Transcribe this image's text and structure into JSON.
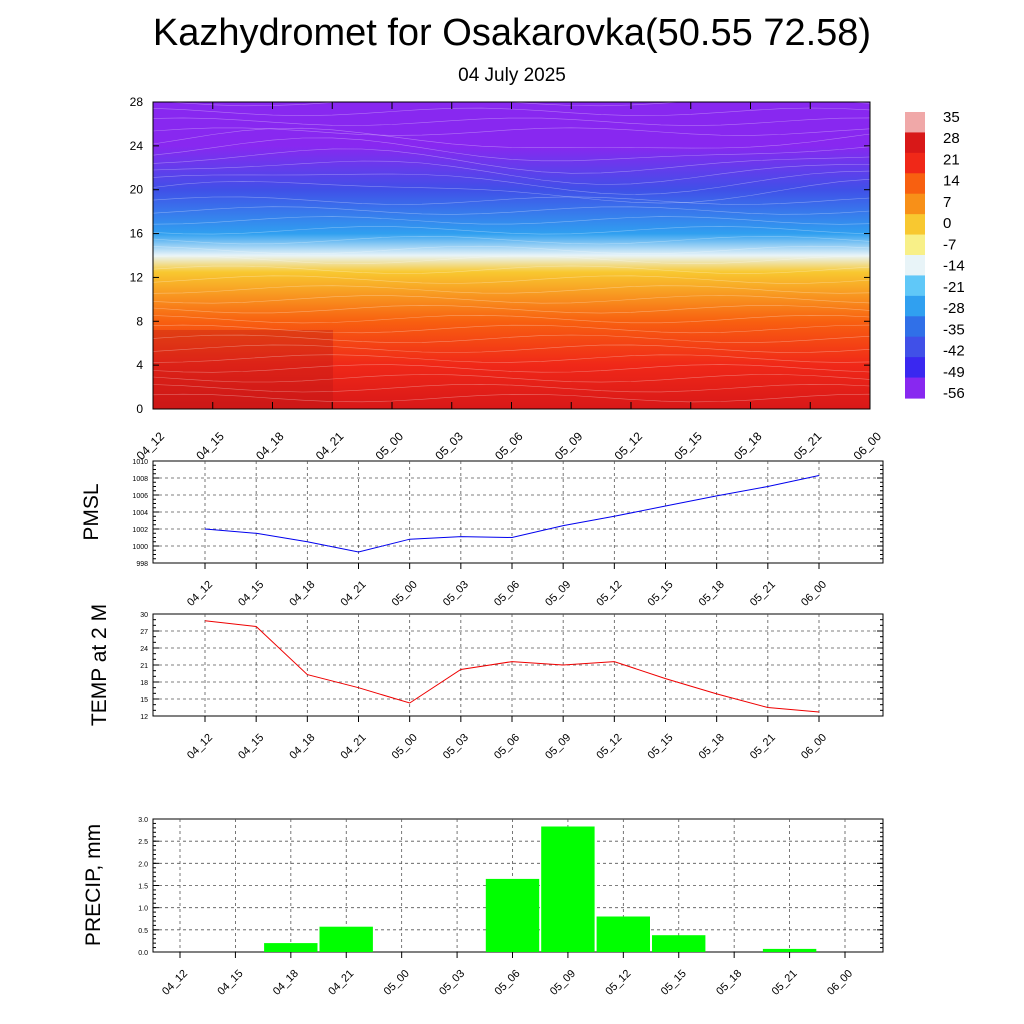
{
  "title": "Kazhydromet for Osakarovka(50.55 72.58)",
  "subtitle": "04 July 2025",
  "time_labels": [
    "04_12",
    "04_15",
    "04_18",
    "04_21",
    "05_00",
    "05_03",
    "05_06",
    "05_09",
    "05_12",
    "05_15",
    "05_18",
    "05_21",
    "06_00"
  ],
  "chart_data": [
    {
      "type": "heatmap",
      "x": [
        "04_12",
        "04_15",
        "04_18",
        "04_21",
        "05_00",
        "05_03",
        "05_06",
        "05_09",
        "05_12",
        "05_15",
        "05_18",
        "05_21",
        "06_00"
      ],
      "yticks": [
        "0",
        "4",
        "8",
        "12",
        "16",
        "20",
        "24",
        "28"
      ],
      "ylim": [
        0,
        28
      ],
      "colorbar": {
        "labels": [
          "35",
          "28",
          "21",
          "14",
          "7",
          "0",
          "-7",
          "-14",
          "-21",
          "-28",
          "-35",
          "-42",
          "-49",
          "-56"
        ],
        "colors": [
          "#f0a8a8",
          "#d81818",
          "#f02818",
          "#f86010",
          "#f89018",
          "#f8c830",
          "#f8f088",
          "#e8f4f8",
          "#60c8f8",
          "#30a0f0",
          "#3070e8",
          "#4050e8",
          "#3a28f0",
          "#8828f0"
        ]
      },
      "temperature_profile": [
        {
          "h": 0,
          "t": 28
        },
        {
          "h": 4,
          "t": 22
        },
        {
          "h": 8,
          "t": 14
        },
        {
          "h": 12.5,
          "t": 2
        },
        {
          "h": 14,
          "t": -14
        },
        {
          "h": 16,
          "t": -28
        },
        {
          "h": 20,
          "t": -40
        },
        {
          "h": 24,
          "t": -53
        },
        {
          "h": 28,
          "t": -58
        }
      ],
      "contour_colors": [
        "#8828f0",
        "#4a30f0",
        "#3040e0",
        "#3070e8",
        "#2a9ef0",
        "#50c8f8",
        "#d0ecf8",
        "#f8f0a0",
        "#f8c020",
        "#f89018",
        "#f86010",
        "#f83010",
        "#e81818",
        "#c81818"
      ]
    },
    {
      "type": "line",
      "ylabel": "PMSL",
      "x": [
        "04_12",
        "04_15",
        "04_18",
        "04_21",
        "05_00",
        "05_03",
        "05_06",
        "05_09",
        "05_12",
        "05_15",
        "05_18",
        "05_21",
        "06_00"
      ],
      "series": [
        {
          "values": [
            1002.0,
            1001.5,
            1000.5,
            999.3,
            1000.8,
            1001.1,
            1001.0,
            1002.4,
            1003.5,
            1004.7,
            1005.9,
            1007.0,
            1008.3
          ],
          "color": "#0000ee"
        }
      ],
      "ylim": [
        998,
        1010
      ],
      "yticks": [
        "998",
        "1000",
        "1002",
        "1004",
        "1006",
        "1008",
        "1010"
      ],
      "grid": true
    },
    {
      "type": "line",
      "ylabel": "TEMP at 2 M",
      "x": [
        "04_12",
        "04_15",
        "04_18",
        "04_21",
        "05_00",
        "05_03",
        "05_06",
        "05_09",
        "05_12",
        "05_15",
        "05_18",
        "05_21",
        "06_00"
      ],
      "series": [
        {
          "values": [
            28.8,
            27.8,
            19.3,
            17.0,
            14.3,
            20.2,
            21.6,
            21.0,
            21.6,
            18.6,
            15.9,
            13.5,
            12.7
          ],
          "color": "#ee0000"
        }
      ],
      "ylim": [
        12,
        30
      ],
      "yticks": [
        "12",
        "15",
        "18",
        "21",
        "24",
        "27",
        "30"
      ],
      "grid": true
    },
    {
      "type": "bar",
      "ylabel": "PRECIP, mm",
      "x": [
        "04_12",
        "04_15",
        "04_18",
        "04_21",
        "05_00",
        "05_03",
        "05_06",
        "05_09",
        "05_12",
        "05_15",
        "05_18",
        "05_21",
        "06_00"
      ],
      "values": [
        0,
        0,
        0.2,
        0.57,
        0,
        0,
        1.65,
        2.83,
        0.8,
        0.38,
        0,
        0.07,
        0
      ],
      "bar_color": "#00ff00",
      "ylim": [
        0,
        3.0
      ],
      "yticks": [
        "0.0",
        "0.5",
        "1.0",
        "1.5",
        "2.0",
        "2.5",
        "3.0"
      ],
      "grid": true
    }
  ]
}
